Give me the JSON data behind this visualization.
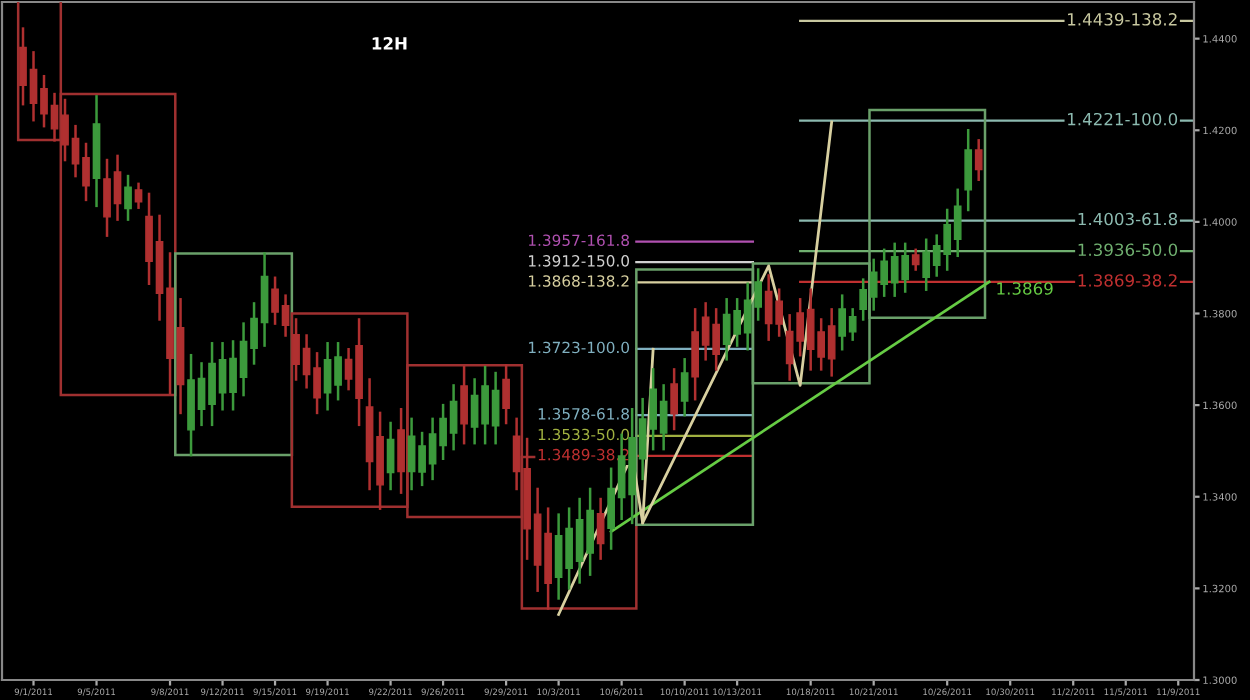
{
  "chart_data": {
    "type": "candlestick",
    "title": "12H",
    "categories": [
      null,
      "9/1/2011",
      null,
      null,
      null,
      null,
      null,
      "9/5/2011",
      null,
      null,
      null,
      null,
      null,
      null,
      "9/8/2011",
      null,
      null,
      null,
      null,
      "9/12/2011",
      null,
      null,
      null,
      null,
      "9/15/2011",
      null,
      null,
      null,
      null,
      "9/19/2011",
      null,
      null,
      null,
      null,
      null,
      "9/22/2011",
      null,
      null,
      null,
      null,
      "9/26/2011",
      null,
      null,
      null,
      null,
      null,
      "9/29/2011",
      null,
      null,
      null,
      null,
      "10/3/2011",
      null,
      null,
      null,
      null,
      null,
      "10/6/2011",
      null,
      null,
      null,
      null,
      null,
      "10/10/2011",
      null,
      null,
      null,
      null,
      "10/13/2011",
      null,
      null,
      null,
      null,
      null,
      null,
      "10/18/2011",
      null,
      null,
      null,
      null,
      null,
      "10/21/2011",
      null,
      null,
      null,
      null,
      null,
      null,
      "10/26/2011",
      null,
      null,
      null,
      null,
      null,
      "10/30/2011",
      null,
      null,
      null,
      null,
      null,
      "11/2/2011",
      null,
      null,
      null,
      null,
      "11/5/2011",
      null,
      null,
      null,
      null,
      "11/9/2011",
      null
    ],
    "ohlc": [
      [
        1.4381,
        1.4422,
        1.4257,
        1.4298
      ],
      [
        1.4333,
        1.437,
        1.4222,
        1.4259
      ],
      [
        1.4291,
        1.4318,
        1.4209,
        1.4236
      ],
      [
        1.4254,
        1.4279,
        1.4178,
        1.4203
      ],
      [
        1.4233,
        1.4266,
        1.4135,
        1.4168
      ],
      [
        1.4182,
        1.4209,
        1.41,
        1.4127
      ],
      [
        1.414,
        1.417,
        1.4048,
        1.4079
      ],
      [
        1.4095,
        1.4274,
        1.4035,
        1.4214
      ],
      [
        1.4094,
        1.4135,
        1.397,
        1.4011
      ],
      [
        1.4109,
        1.4144,
        1.4005,
        1.404
      ],
      [
        1.4029,
        1.41,
        1.4005,
        1.4076
      ],
      [
        1.407,
        1.4083,
        1.4031,
        1.4044
      ],
      [
        1.4012,
        1.4061,
        1.3865,
        1.3914
      ],
      [
        1.3957,
        1.4013,
        1.3787,
        1.3844
      ],
      [
        1.3855,
        1.3931,
        1.3626,
        1.3702
      ],
      [
        1.3769,
        1.3831,
        1.3583,
        1.3645
      ],
      [
        1.3546,
        1.3709,
        1.3491,
        1.3655
      ],
      [
        1.3591,
        1.3691,
        1.3557,
        1.3658
      ],
      [
        1.3602,
        1.3735,
        1.3557,
        1.3691
      ],
      [
        1.3627,
        1.3735,
        1.3591,
        1.3699
      ],
      [
        1.3628,
        1.3739,
        1.3591,
        1.3702
      ],
      [
        1.3661,
        1.3778,
        1.3622,
        1.3739
      ],
      [
        1.3724,
        1.3822,
        1.3691,
        1.3789
      ],
      [
        1.378,
        1.3931,
        1.373,
        1.3881
      ],
      [
        1.3853,
        1.3878,
        1.3778,
        1.3803
      ],
      [
        1.3817,
        1.3839,
        1.3752,
        1.3774
      ],
      [
        1.3754,
        1.3787,
        1.3656,
        1.3689
      ],
      [
        1.3724,
        1.3752,
        1.3639,
        1.3667
      ],
      [
        1.3681,
        1.3713,
        1.3583,
        1.3616
      ],
      [
        1.3627,
        1.3735,
        1.3591,
        1.3699
      ],
      [
        1.3644,
        1.3735,
        1.3613,
        1.3705
      ],
      [
        1.37,
        1.3722,
        1.3635,
        1.3657
      ],
      [
        1.373,
        1.3787,
        1.3557,
        1.3615
      ],
      [
        1.3596,
        1.3656,
        1.3417,
        1.3477
      ],
      [
        1.3531,
        1.3583,
        1.3374,
        1.3426
      ],
      [
        1.3453,
        1.3561,
        1.3417,
        1.3525
      ],
      [
        1.3546,
        1.3591,
        1.3409,
        1.3455
      ],
      [
        1.3455,
        1.357,
        1.3417,
        1.3532
      ],
      [
        1.3454,
        1.3539,
        1.3426,
        1.3511
      ],
      [
        1.3472,
        1.357,
        1.3439,
        1.3537
      ],
      [
        1.3512,
        1.36,
        1.3483,
        1.3571
      ],
      [
        1.3539,
        1.3643,
        1.3504,
        1.3608
      ],
      [
        1.3642,
        1.3683,
        1.3517,
        1.3559
      ],
      [
        1.3552,
        1.3656,
        1.3517,
        1.3621
      ],
      [
        1.3559,
        1.3683,
        1.3517,
        1.3642
      ],
      [
        1.3555,
        1.367,
        1.3517,
        1.3632
      ],
      [
        1.3656,
        1.3687,
        1.3561,
        1.3593
      ],
      [
        1.3532,
        1.357,
        1.3417,
        1.3455
      ],
      [
        1.3461,
        1.3526,
        1.3265,
        1.333
      ],
      [
        1.3362,
        1.3417,
        1.3195,
        1.3251
      ],
      [
        1.332,
        1.3374,
        1.3156,
        1.3211
      ],
      [
        1.3224,
        1.3361,
        1.3178,
        1.3315
      ],
      [
        1.3244,
        1.3374,
        1.32,
        1.3331
      ],
      [
        1.3259,
        1.3395,
        1.3213,
        1.335
      ],
      [
        1.3277,
        1.3417,
        1.323,
        1.337
      ],
      [
        1.3363,
        1.3395,
        1.3265,
        1.3298
      ],
      [
        1.3331,
        1.3461,
        1.3287,
        1.3418
      ],
      [
        1.3398,
        1.3535,
        1.3352,
        1.3489
      ],
      [
        1.3405,
        1.3591,
        1.3343,
        1.3529
      ],
      [
        1.3483,
        1.3613,
        1.3439,
        1.357
      ],
      [
        1.3548,
        1.3678,
        1.3504,
        1.3635
      ],
      [
        1.3539,
        1.3643,
        1.3504,
        1.3608
      ],
      [
        1.3646,
        1.3678,
        1.3548,
        1.3581
      ],
      [
        1.3609,
        1.37,
        1.3578,
        1.367
      ],
      [
        1.376,
        1.3809,
        1.3613,
        1.3662
      ],
      [
        1.3792,
        1.3822,
        1.37,
        1.3731
      ],
      [
        1.3776,
        1.3809,
        1.3678,
        1.3711
      ],
      [
        1.3733,
        1.3831,
        1.37,
        1.3798
      ],
      [
        1.3755,
        1.3831,
        1.373,
        1.3806
      ],
      [
        1.3758,
        1.3865,
        1.3722,
        1.3829
      ],
      [
        1.3814,
        1.3896,
        1.3787,
        1.3869
      ],
      [
        1.3848,
        1.3883,
        1.3743,
        1.3778
      ],
      [
        1.3827,
        1.3852,
        1.3752,
        1.3777
      ],
      [
        1.3761,
        1.3796,
        1.3656,
        1.3691
      ],
      [
        1.3801,
        1.3831,
        1.3709,
        1.374
      ],
      [
        1.3809,
        1.3852,
        1.3678,
        1.3722
      ],
      [
        1.376,
        1.3787,
        1.3678,
        1.3705
      ],
      [
        1.3773,
        1.3809,
        1.3665,
        1.3701
      ],
      [
        1.3751,
        1.3839,
        1.3722,
        1.381
      ],
      [
        1.376,
        1.3809,
        1.3743,
        1.3793
      ],
      [
        1.3809,
        1.3874,
        1.3787,
        1.3852
      ],
      [
        1.3836,
        1.3917,
        1.3809,
        1.389
      ],
      [
        1.3864,
        1.3939,
        1.3839,
        1.3914
      ],
      [
        1.3867,
        1.3952,
        1.3839,
        1.3924
      ],
      [
        1.3874,
        1.3952,
        1.3848,
        1.3926
      ],
      [
        1.3928,
        1.3939,
        1.3896,
        1.3907
      ],
      [
        1.3879,
        1.3961,
        1.3852,
        1.3934
      ],
      [
        1.3905,
        1.397,
        1.3883,
        1.3948
      ],
      [
        1.3929,
        1.4026,
        1.3896,
        1.3994
      ],
      [
        1.3962,
        1.407,
        1.3926,
        1.4034
      ],
      [
        1.407,
        1.42,
        1.4026,
        1.4157
      ],
      [
        1.4157,
        1.4178,
        1.4092,
        1.4114
      ],
      null,
      null,
      null,
      null,
      null,
      null,
      null,
      null,
      null,
      null,
      null,
      null,
      null,
      null,
      null,
      null,
      null,
      null,
      null,
      null
    ],
    "colors": [
      "#b03030",
      "#b03030",
      "#b03030",
      "#b03030",
      "#b03030",
      "#b03030",
      "#b03030",
      "#3c9a3c",
      "#b03030",
      "#b03030",
      "#3c9a3c",
      "#b03030",
      "#b03030",
      "#b03030",
      "#b03030",
      "#b03030",
      "#3c9a3c",
      "#3c9a3c",
      "#3c9a3c",
      "#3c9a3c",
      "#3c9a3c",
      "#3c9a3c",
      "#3c9a3c",
      "#3c9a3c",
      "#b03030",
      "#b03030",
      "#b03030",
      "#b03030",
      "#b03030",
      "#3c9a3c",
      "#3c9a3c",
      "#b03030",
      "#b03030",
      "#b03030",
      "#b03030",
      "#3c9a3c",
      "#b03030",
      "#3c9a3c",
      "#3c9a3c",
      "#3c9a3c",
      "#3c9a3c",
      "#3c9a3c",
      "#b03030",
      "#3c9a3c",
      "#3c9a3c",
      "#3c9a3c",
      "#b03030",
      "#b03030",
      "#b03030",
      "#b03030",
      "#b03030",
      "#3c9a3c",
      "#3c9a3c",
      "#3c9a3c",
      "#3c9a3c",
      "#b03030",
      "#3c9a3c",
      "#3c9a3c",
      "#3c9a3c",
      "#3c9a3c",
      "#3c9a3c",
      "#3c9a3c",
      "#b03030",
      "#3c9a3c",
      "#b03030",
      "#b03030",
      "#b03030",
      "#3c9a3c",
      "#3c9a3c",
      "#3c9a3c",
      "#3c9a3c",
      "#b03030",
      "#b03030",
      "#b03030",
      "#b03030",
      "#b03030",
      "#b03030",
      "#b03030",
      "#3c9a3c",
      "#3c9a3c",
      "#3c9a3c",
      "#3c9a3c",
      "#3c9a3c",
      "#3c9a3c",
      "#3c9a3c",
      "#b03030",
      "#3c9a3c",
      "#3c9a3c",
      "#3c9a3c",
      "#3c9a3c",
      "#3c9a3c",
      "#b03030",
      null,
      null,
      null,
      null,
      null,
      null,
      null,
      null,
      null,
      null,
      null,
      null,
      null,
      null,
      null,
      null,
      null,
      null,
      null,
      null
    ],
    "series": [
      {
        "type": "line",
        "color": "#66cc44",
        "values": [
          null,
          null,
          null,
          null,
          null,
          null,
          null,
          null,
          null,
          null,
          null,
          null,
          null,
          null,
          null,
          null,
          null,
          null,
          null,
          null,
          null,
          null,
          null,
          null,
          null,
          null,
          null,
          null,
          null,
          null,
          null,
          null,
          null,
          null,
          null,
          null,
          null,
          null,
          null,
          null,
          null,
          null,
          null,
          null,
          null,
          null,
          null,
          null,
          null,
          null,
          null,
          null,
          null,
          null,
          null,
          null,
          1.3324,
          null,
          null,
          null,
          null,
          null,
          null,
          null,
          null,
          null,
          null,
          null,
          null,
          null,
          null,
          null,
          null,
          null,
          null,
          null,
          null,
          null,
          null,
          null,
          null,
          null,
          null,
          null,
          null,
          null,
          null,
          null,
          null,
          null,
          null,
          null,
          1.3869,
          null,
          null,
          null,
          null,
          null,
          null,
          null,
          null,
          null,
          null,
          null,
          null,
          null,
          null,
          null,
          null,
          null,
          null,
          null
        ]
      },
      {
        "type": "line",
        "color": "#d8d0a0",
        "values": [
          null,
          null,
          null,
          null,
          null,
          null,
          null,
          null,
          null,
          null,
          null,
          null,
          null,
          null,
          null,
          null,
          null,
          null,
          null,
          null,
          null,
          null,
          null,
          null,
          null,
          null,
          null,
          null,
          null,
          null,
          null,
          null,
          null,
          null,
          null,
          null,
          null,
          null,
          null,
          null,
          null,
          null,
          null,
          null,
          null,
          null,
          null,
          null,
          null,
          null,
          null,
          1.3143,
          null,
          null,
          null,
          null,
          null,
          null,
          1.3491,
          1.3343,
          null,
          null,
          null,
          null,
          null,
          null,
          null,
          null,
          null,
          null,
          null,
          1.3904,
          null,
          null,
          1.3643,
          null,
          null,
          1.4218,
          null,
          null,
          null,
          null,
          null,
          null,
          null,
          null,
          null,
          null,
          null,
          null,
          null,
          null,
          null,
          null,
          null,
          null,
          null,
          null,
          null,
          null,
          null,
          null,
          null,
          null,
          null,
          null,
          null,
          null,
          null,
          null,
          null,
          null
        ]
      },
      {
        "type": "line",
        "color": "#d8d0a0",
        "values": [
          null,
          null,
          null,
          null,
          null,
          null,
          null,
          null,
          null,
          null,
          null,
          null,
          null,
          null,
          null,
          null,
          null,
          null,
          null,
          null,
          null,
          null,
          null,
          null,
          null,
          null,
          null,
          null,
          null,
          null,
          null,
          null,
          null,
          null,
          null,
          null,
          null,
          null,
          null,
          null,
          null,
          null,
          null,
          null,
          null,
          null,
          null,
          null,
          null,
          null,
          null,
          null,
          null,
          null,
          null,
          null,
          null,
          null,
          null,
          1.3343,
          1.3722,
          null,
          null,
          null,
          null,
          null,
          null,
          null,
          null,
          null,
          null,
          null,
          null,
          null,
          null,
          null,
          null,
          null,
          null,
          null,
          null,
          null,
          null,
          null,
          null,
          null,
          null,
          null,
          null,
          null,
          null,
          null,
          null,
          null,
          null,
          null,
          null,
          null,
          null,
          null,
          null,
          null,
          null,
          null,
          null,
          null,
          null,
          null,
          null,
          null,
          null,
          null
        ]
      }
    ],
    "ref_lines": [
      {
        "axis": "y",
        "value": 1.4439,
        "label": "1.4439-138.2",
        "color": "#c8c8a0"
      },
      {
        "axis": "y",
        "value": 1.4221,
        "label": "1.4221-100.0",
        "color": "#8cbab0"
      },
      {
        "axis": "y",
        "value": 1.4003,
        "label": "1.4003-61.8",
        "color": "#8cbab0"
      },
      {
        "axis": "y",
        "value": 1.3936,
        "label": "1.3936-50.0",
        "color": "#70b070"
      },
      {
        "axis": "y",
        "value": 1.3869,
        "label": "1.3869-38.2",
        "color": "#c03030"
      },
      {
        "axis": "y",
        "value": 1.3957,
        "label": "1.3957-161.8",
        "color": "#b050b0"
      },
      {
        "axis": "y",
        "value": 1.3912,
        "label": "1.3912-150.0",
        "color": "#d0d0d0"
      },
      {
        "axis": "y",
        "value": 1.3868,
        "label": "1.3868-138.2",
        "color": "#d8d0a0"
      },
      {
        "axis": "y",
        "value": 1.3723,
        "label": "1.3723-100.0",
        "color": "#80b0c0"
      },
      {
        "axis": "y",
        "value": 1.3578,
        "label": "1.3578-61.8",
        "color": "#80b0c0"
      },
      {
        "axis": "y",
        "value": 1.3533,
        "label": "1.3533-50.0",
        "color": "#a0b040"
      },
      {
        "axis": "y",
        "value": 1.3489,
        "label": "1.3489-38.2",
        "color": "#c03030"
      }
    ],
    "annotations": [
      {
        "text": "1.3869",
        "y": 1.3869
      }
    ],
    "ylim": [
      1.3,
      1.448
    ],
    "yticks": [
      {
        "value": 1.3,
        "label": "1.3000"
      },
      {
        "value": 1.32,
        "label": "1.3200"
      },
      {
        "value": 1.34,
        "label": "1.3400"
      },
      {
        "value": 1.36,
        "label": "1.3600"
      },
      {
        "value": 1.38,
        "label": "1.3800"
      },
      {
        "value": 1.4,
        "label": "1.4000"
      },
      {
        "value": 1.42,
        "label": "1.4200"
      },
      {
        "value": 1.44,
        "label": "1.4400"
      }
    ],
    "grid": false,
    "legend": false
  }
}
